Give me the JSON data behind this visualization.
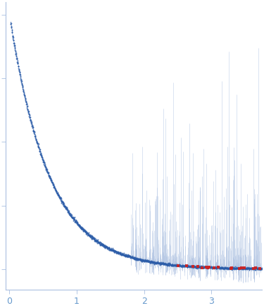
{
  "title": "",
  "xlabel": "",
  "ylabel": "",
  "xlim": [
    -0.05,
    3.75
  ],
  "background_color": "#ffffff",
  "main_color": "#2B5CA8",
  "error_color": "#AABFE0",
  "outlier_color": "#CC2222",
  "x_ticks": [
    0,
    1,
    2,
    3
  ],
  "figsize": [
    3.75,
    4.37
  ],
  "dpi": 100,
  "seed": 42
}
